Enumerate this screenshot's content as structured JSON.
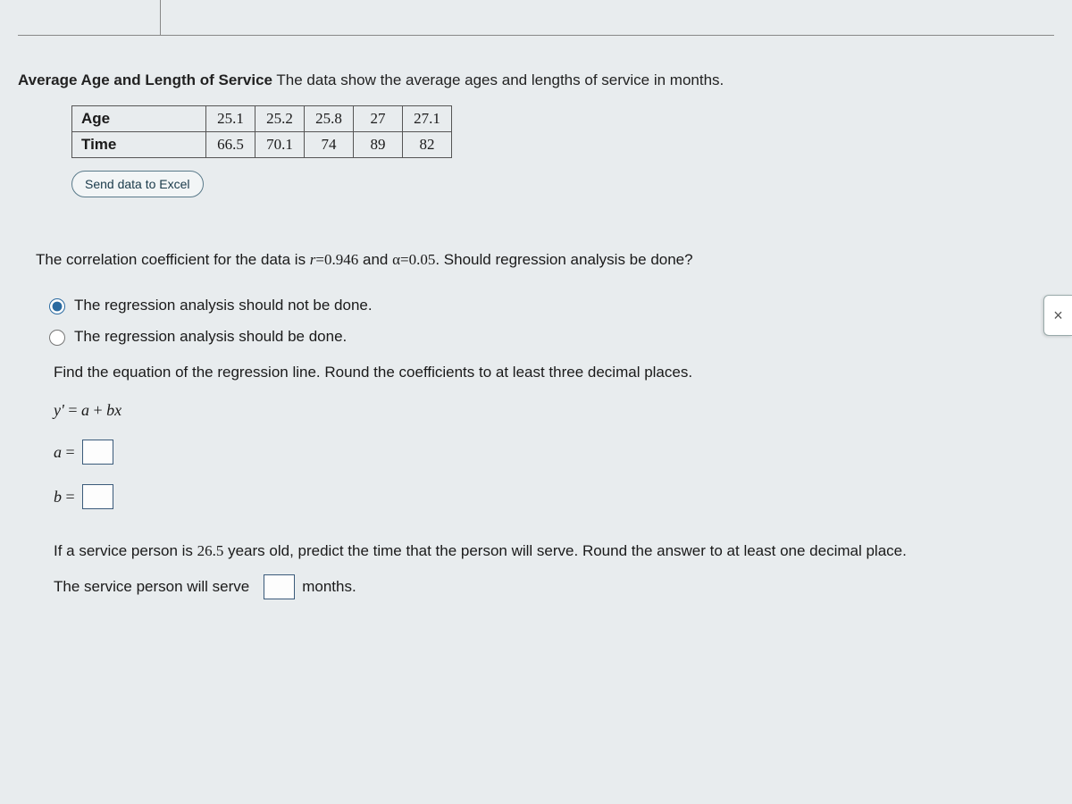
{
  "colors": {
    "page_background": "#e8ecee",
    "text": "#1a1a1a",
    "border": "#555555",
    "button_border": "#5a7a8a",
    "button_text": "#1a3a4a",
    "input_border": "#3a5a7a"
  },
  "title": {
    "bold": "Average Age and Length of Service",
    "rest": " The data show the average ages and lengths of service in months."
  },
  "table": {
    "row1_header": "Age",
    "row1": [
      "25.1",
      "25.2",
      "25.8",
      "27",
      "27.1"
    ],
    "row2_header": "Time",
    "row2": [
      "66.5",
      "70.1",
      "74",
      "89",
      "82"
    ]
  },
  "excel_button": "Send data to Excel",
  "correlation_text": {
    "prefix": "The correlation coefficient for the data is ",
    "r_eq": "r",
    "r_val": "=0.946",
    "mid": " and ",
    "alpha": "α",
    "alpha_val": "=0.05",
    "suffix": ". Should regression analysis be done?"
  },
  "options": {
    "opt1": "The regression analysis should not be done.",
    "opt2": "The regression analysis should be done."
  },
  "instruction": "Find the equation of the regression line. Round the coefficients to at least three decimal places.",
  "equation": "y' = a + bx",
  "coef_a_label": "a =",
  "coef_b_label": "b =",
  "predict": {
    "prefix": "If a service person is ",
    "age": "26.5",
    "suffix": " years old, predict the time that the person will serve. Round the answer to at least one decimal place."
  },
  "serve_line": {
    "prefix": "The service person will serve",
    "suffix": "months."
  },
  "close_icon": "×"
}
